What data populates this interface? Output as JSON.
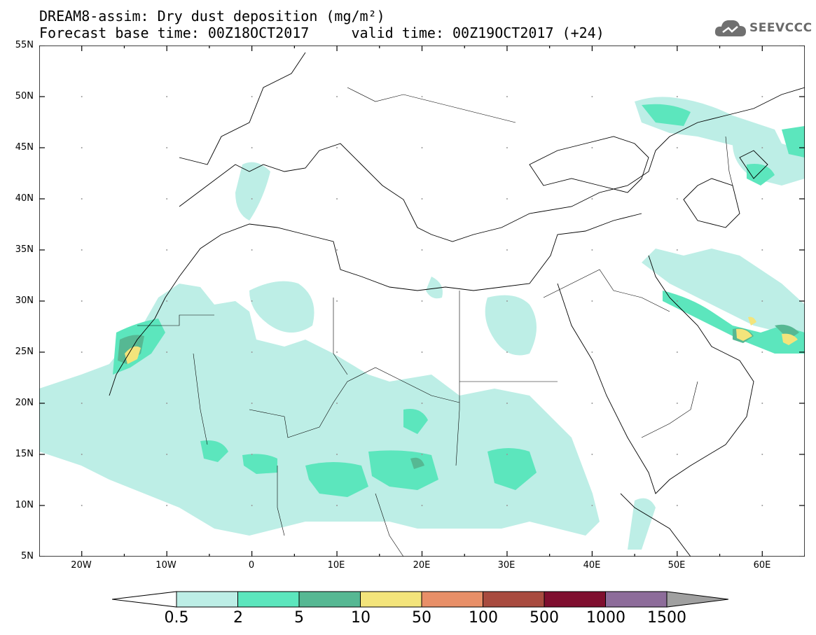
{
  "title": {
    "line1": "DREAM8-assim: Dry dust deposition (mg/m²)",
    "line2": "Forecast base time: 00Z18OCT2017     valid time: 00Z19OCT2017 (+24)"
  },
  "logo": {
    "text": "SEEVCCC",
    "icon": "cloud-logo-icon"
  },
  "map": {
    "projection": "lat-lon",
    "lon_range": [
      -25,
      65
    ],
    "lat_range": [
      5,
      55
    ],
    "y_ticks": [
      "55N",
      "50N",
      "45N",
      "40N",
      "35N",
      "30N",
      "25N",
      "20N",
      "15N",
      "10N",
      "5N"
    ],
    "x_ticks": [
      "20W",
      "10W",
      "0",
      "10E",
      "20E",
      "30E",
      "40E",
      "50E",
      "60E"
    ]
  },
  "legend": {
    "labels": [
      "0.5",
      "2",
      "5",
      "10",
      "50",
      "100",
      "500",
      "1000",
      "1500"
    ],
    "colors": [
      "#ffffff",
      "#bdeee6",
      "#5ce6bd",
      "#56b893",
      "#f3e47b",
      "#e88f68",
      "#a84b3f",
      "#7f0f2f",
      "#8d6c9a",
      "#a0a0a0"
    ]
  }
}
